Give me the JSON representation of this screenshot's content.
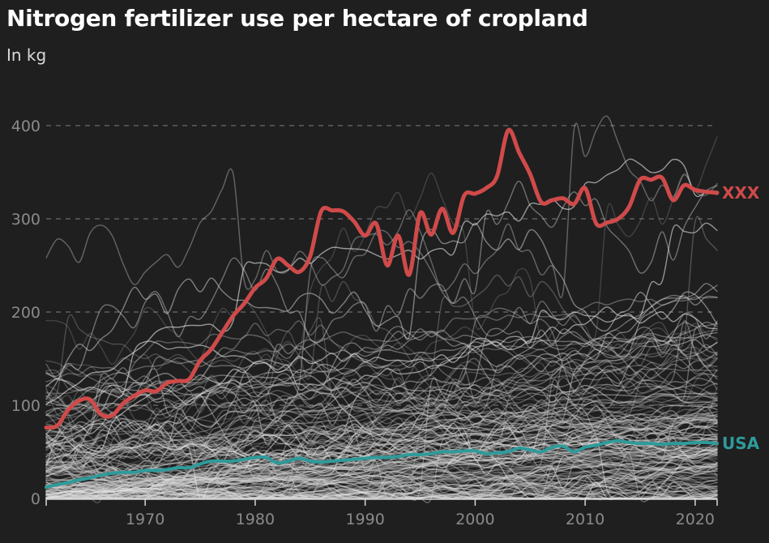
{
  "title": "Nitrogen fertilizer use per hectare of cropland",
  "subtitle": "In kg",
  "colors": {
    "background": "#1f1f1f",
    "highlight_1": "#d04a4a",
    "highlight_2": "#2f9a9a",
    "background_lines": "#d9d9d9"
  },
  "chart_data": {
    "type": "line",
    "xlim": [
      1961,
      2022
    ],
    "ylim": [
      0,
      400
    ],
    "x_ticks": [
      "1970",
      "1980",
      "1990",
      "2000",
      "2010",
      "2020"
    ],
    "y_ticks": [
      "0",
      "100",
      "200",
      "300",
      "400"
    ],
    "grid": true,
    "legend": "none",
    "series": [
      {
        "name": "XXX",
        "color": "#d04a4a",
        "x": [
          1961,
          1962,
          1963,
          1964,
          1965,
          1966,
          1967,
          1968,
          1969,
          1970,
          1971,
          1972,
          1973,
          1974,
          1975,
          1976,
          1977,
          1978,
          1979,
          1980,
          1981,
          1982,
          1983,
          1984,
          1985,
          1986,
          1987,
          1988,
          1989,
          1990,
          1991,
          1992,
          1993,
          1994,
          1995,
          1996,
          1997,
          1998,
          1999,
          2000,
          2001,
          2002,
          2003,
          2004,
          2005,
          2006,
          2007,
          2008,
          2009,
          2010,
          2011,
          2012,
          2013,
          2014,
          2015,
          2016,
          2017,
          2018,
          2019,
          2020,
          2021,
          2022
        ],
        "values": [
          76,
          78,
          95,
          105,
          106,
          90,
          89,
          102,
          110,
          116,
          115,
          124,
          126,
          128,
          148,
          160,
          178,
          196,
          209,
          226,
          236,
          257,
          250,
          243,
          260,
          308,
          309,
          308,
          297,
          282,
          295,
          250,
          282,
          240,
          306,
          283,
          311,
          285,
          325,
          327,
          333,
          346,
          395,
          371,
          348,
          318,
          320,
          322,
          316,
          333,
          295,
          296,
          300,
          313,
          342,
          342,
          344,
          320,
          336,
          331,
          329,
          328
        ]
      },
      {
        "name": "USA",
        "color": "#2f9a9a",
        "x": [
          1961,
          1962,
          1963,
          1964,
          1965,
          1966,
          1967,
          1968,
          1969,
          1970,
          1971,
          1972,
          1973,
          1974,
          1975,
          1976,
          1977,
          1978,
          1979,
          1980,
          1981,
          1982,
          1983,
          1984,
          1985,
          1986,
          1987,
          1988,
          1989,
          1990,
          1991,
          1992,
          1993,
          1994,
          1995,
          1996,
          1997,
          1998,
          1999,
          2000,
          2001,
          2002,
          2003,
          2004,
          2005,
          2006,
          2007,
          2008,
          2009,
          2010,
          2011,
          2012,
          2013,
          2014,
          2015,
          2016,
          2017,
          2018,
          2019,
          2020,
          2021,
          2022
        ],
        "values": [
          12,
          15,
          17,
          20,
          22,
          25,
          27,
          28,
          28,
          30,
          30,
          31,
          33,
          33,
          37,
          40,
          40,
          40,
          42,
          44,
          44,
          38,
          40,
          43,
          40,
          39,
          40,
          41,
          42,
          43,
          44,
          44,
          45,
          47,
          47,
          48,
          50,
          50,
          51,
          51,
          48,
          49,
          50,
          54,
          52,
          50,
          55,
          56,
          50,
          55,
          57,
          60,
          62,
          60,
          59,
          59,
          58,
          59,
          59,
          60,
          60,
          59
        ]
      }
    ]
  }
}
